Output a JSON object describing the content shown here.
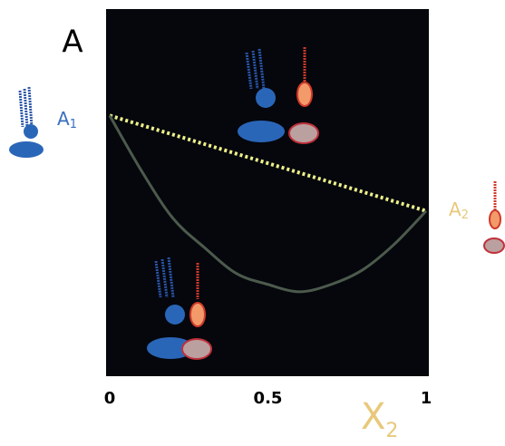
{
  "chart_data": {
    "type": "line",
    "title": "A",
    "x_label": {
      "text": "X",
      "subscript": "2"
    },
    "annotations": [
      {
        "text": "A",
        "subscript": "1",
        "color": "#3a6fc0"
      },
      {
        "text": "A",
        "subscript": "2",
        "color": "#e8c87a"
      }
    ],
    "xlim": [
      0,
      1
    ],
    "xticks": [
      0,
      0.5,
      1
    ],
    "ylim": [
      0,
      1
    ],
    "background": "#05070d",
    "series": [
      {
        "color": "#eef08a",
        "dash": "dotted",
        "x": [
          0,
          1
        ],
        "values": [
          0.71,
          0.45
        ]
      },
      {
        "color": "#4c5a4c",
        "dash": "solid",
        "x": [
          0,
          0.1,
          0.2,
          0.3,
          0.4,
          0.5,
          0.6,
          0.7,
          0.8,
          0.9,
          1
        ],
        "values": [
          0.71,
          0.56,
          0.43,
          0.35,
          0.28,
          0.25,
          0.23,
          0.25,
          0.29,
          0.36,
          0.45
        ]
      }
    ]
  }
}
